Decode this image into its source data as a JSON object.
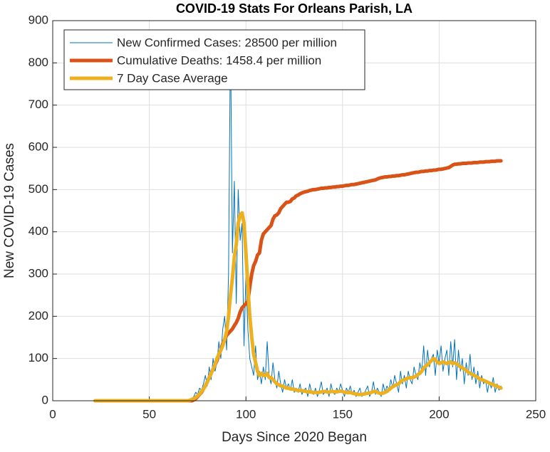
{
  "chart_data": {
    "type": "line",
    "title": "COVID-19 Stats For Orleans Parish, LA",
    "xlabel": "Days Since 2020 Began",
    "ylabel": "New COVID-19 Cases",
    "xlim": [
      0,
      250
    ],
    "xticks": [
      0,
      50,
      100,
      150,
      200,
      250
    ],
    "ylim": [
      0,
      900
    ],
    "yticks": [
      0,
      100,
      200,
      300,
      400,
      500,
      600,
      700,
      800,
      900
    ],
    "grid": true,
    "legend": "northwest",
    "x": [
      22,
      23,
      24,
      25,
      26,
      27,
      28,
      29,
      30,
      31,
      32,
      33,
      34,
      35,
      36,
      37,
      38,
      39,
      40,
      41,
      42,
      43,
      44,
      45,
      46,
      47,
      48,
      49,
      50,
      51,
      52,
      53,
      54,
      55,
      56,
      57,
      58,
      59,
      60,
      61,
      62,
      63,
      64,
      65,
      66,
      67,
      68,
      69,
      70,
      71,
      72,
      73,
      74,
      75,
      76,
      77,
      78,
      79,
      80,
      81,
      82,
      83,
      84,
      85,
      86,
      87,
      88,
      89,
      90,
      91,
      92,
      93,
      94,
      95,
      96,
      97,
      98,
      99,
      100,
      101,
      102,
      103,
      104,
      105,
      106,
      107,
      108,
      109,
      110,
      111,
      112,
      113,
      114,
      115,
      116,
      117,
      118,
      119,
      120,
      121,
      122,
      123,
      124,
      125,
      126,
      127,
      128,
      129,
      130,
      131,
      132,
      133,
      134,
      135,
      136,
      137,
      138,
      139,
      140,
      141,
      142,
      143,
      144,
      145,
      146,
      147,
      148,
      149,
      150,
      151,
      152,
      153,
      154,
      155,
      156,
      157,
      158,
      159,
      160,
      161,
      162,
      163,
      164,
      165,
      166,
      167,
      168,
      169,
      170,
      171,
      172,
      173,
      174,
      175,
      176,
      177,
      178,
      179,
      180,
      181,
      182,
      183,
      184,
      185,
      186,
      187,
      188,
      189,
      190,
      191,
      192,
      193,
      194,
      195,
      196,
      197,
      198,
      199,
      200,
      201,
      202,
      203,
      204,
      205,
      206,
      207,
      208,
      209,
      210,
      211,
      212,
      213,
      214,
      215,
      216,
      217,
      218,
      219,
      220,
      221,
      222,
      223,
      224,
      225,
      226,
      227,
      228,
      229,
      230,
      231,
      232
    ],
    "series": [
      {
        "name": "New Confirmed Cases: 28500 per million",
        "color": "#0072BD",
        "width": 1,
        "values": [
          0,
          0,
          0,
          0,
          0,
          0,
          0,
          0,
          0,
          0,
          0,
          0,
          0,
          0,
          0,
          0,
          0,
          0,
          0,
          0,
          0,
          0,
          0,
          0,
          0,
          0,
          0,
          0,
          0,
          0,
          0,
          0,
          0,
          0,
          0,
          0,
          0,
          0,
          0,
          0,
          0,
          0,
          0,
          0,
          0,
          0,
          0,
          0,
          0,
          2,
          5,
          10,
          20,
          15,
          30,
          25,
          40,
          60,
          35,
          80,
          50,
          100,
          70,
          90,
          140,
          100,
          170,
          200,
          120,
          300,
          870,
          350,
          520,
          230,
          500,
          380,
          420,
          130,
          300,
          170,
          100,
          80,
          60,
          130,
          50,
          70,
          40,
          80,
          50,
          140,
          60,
          40,
          90,
          50,
          30,
          70,
          40,
          20,
          50,
          30,
          40,
          25,
          50,
          20,
          30,
          20,
          40,
          15,
          25,
          30,
          10,
          40,
          20,
          15,
          30,
          10,
          25,
          45,
          15,
          20,
          30,
          10,
          40,
          20,
          15,
          30,
          20,
          40,
          25,
          10,
          30,
          20,
          35,
          15,
          25,
          10,
          20,
          30,
          10,
          15,
          25,
          35,
          10,
          20,
          45,
          15,
          30,
          20,
          10,
          40,
          20,
          35,
          25,
          50,
          30,
          60,
          40,
          20,
          70,
          40,
          60,
          30,
          70,
          50,
          40,
          80,
          60,
          50,
          90,
          70,
          130,
          60,
          120,
          80,
          100,
          110,
          60,
          120,
          90,
          130,
          70,
          100,
          120,
          60,
          140,
          80,
          145,
          50,
          120,
          70,
          100,
          40,
          90,
          60,
          110,
          50,
          80,
          40,
          70,
          30,
          60,
          40,
          50,
          20,
          45,
          30,
          55,
          20,
          40,
          25,
          35
        ]
      },
      {
        "name": "Cumulative Deaths: 1458.4 per million",
        "color": "#D95319",
        "width": 5,
        "values": [
          0,
          0,
          0,
          0,
          0,
          0,
          0,
          0,
          0,
          0,
          0,
          0,
          0,
          0,
          0,
          0,
          0,
          0,
          0,
          0,
          0,
          0,
          0,
          0,
          0,
          0,
          0,
          0,
          0,
          0,
          0,
          0,
          0,
          0,
          0,
          0,
          0,
          0,
          0,
          0,
          0,
          0,
          0,
          0,
          0,
          0,
          0,
          0,
          0,
          0,
          0,
          2,
          5,
          10,
          15,
          20,
          28,
          35,
          45,
          55,
          65,
          75,
          85,
          95,
          110,
          120,
          135,
          145,
          155,
          160,
          165,
          170,
          178,
          185,
          195,
          210,
          220,
          225,
          230,
          235,
          270,
          300,
          320,
          330,
          345,
          350,
          380,
          395,
          400,
          405,
          410,
          415,
          430,
          438,
          440,
          445,
          455,
          460,
          465,
          470,
          470,
          472,
          478,
          480,
          485,
          487,
          490,
          492,
          494,
          495,
          496,
          498,
          499,
          500,
          500,
          501,
          502,
          503,
          503,
          504,
          504,
          505,
          505,
          506,
          506,
          507,
          507,
          508,
          508,
          509,
          510,
          510,
          511,
          512,
          512,
          513,
          514,
          515,
          516,
          517,
          518,
          519,
          520,
          521,
          522,
          523,
          525,
          527,
          528,
          529,
          530,
          530,
          531,
          531,
          532,
          532,
          533,
          533,
          534,
          535,
          535,
          536,
          537,
          538,
          539,
          540,
          541,
          541,
          542,
          543,
          543,
          544,
          544,
          545,
          545,
          546,
          546,
          547,
          548,
          548,
          549,
          550,
          551,
          552,
          555,
          558,
          560,
          560,
          561,
          561,
          562,
          562,
          562,
          563,
          563,
          563,
          564,
          564,
          564,
          565,
          565,
          565,
          566,
          566,
          566,
          567,
          567,
          567,
          568,
          568,
          568
        ]
      },
      {
        "name": "7 Day Case Average",
        "color": "#EDB120",
        "width": 5,
        "values": [
          0,
          0,
          0,
          0,
          0,
          0,
          0,
          0,
          0,
          0,
          0,
          0,
          0,
          0,
          0,
          0,
          0,
          0,
          0,
          0,
          0,
          0,
          0,
          0,
          0,
          0,
          0,
          0,
          0,
          0,
          0,
          0,
          0,
          0,
          0,
          0,
          0,
          0,
          0,
          0,
          0,
          0,
          0,
          0,
          0,
          0,
          0,
          0,
          0,
          1,
          3,
          5,
          8,
          12,
          16,
          22,
          28,
          35,
          45,
          55,
          65,
          75,
          85,
          100,
          110,
          120,
          130,
          145,
          165,
          200,
          250,
          290,
          340,
          370,
          420,
          440,
          445,
          420,
          350,
          270,
          200,
          150,
          110,
          90,
          70,
          60,
          65,
          60,
          60,
          65,
          55,
          55,
          50,
          45,
          40,
          38,
          35,
          35,
          32,
          30,
          30,
          28,
          28,
          27,
          25,
          25,
          24,
          24,
          23,
          22,
          21,
          22,
          20,
          20,
          20,
          19,
          20,
          21,
          22,
          22,
          21,
          20,
          22,
          22,
          21,
          21,
          22,
          23,
          22,
          20,
          20,
          19,
          20,
          18,
          17,
          16,
          15,
          15,
          15,
          16,
          17,
          18,
          18,
          20,
          22,
          22,
          20,
          18,
          17,
          18,
          20,
          22,
          26,
          30,
          33,
          36,
          38,
          40,
          45,
          48,
          50,
          52,
          54,
          55,
          54,
          56,
          58,
          62,
          65,
          70,
          78,
          82,
          85,
          90,
          95,
          100,
          98,
          92,
          88,
          90,
          92,
          90,
          88,
          90,
          92,
          88,
          90,
          88,
          85,
          80,
          78,
          75,
          72,
          68,
          65,
          62,
          60,
          58,
          55,
          52,
          50,
          48,
          46,
          44,
          42,
          40,
          38,
          36,
          34,
          32,
          30
        ]
      }
    ]
  }
}
